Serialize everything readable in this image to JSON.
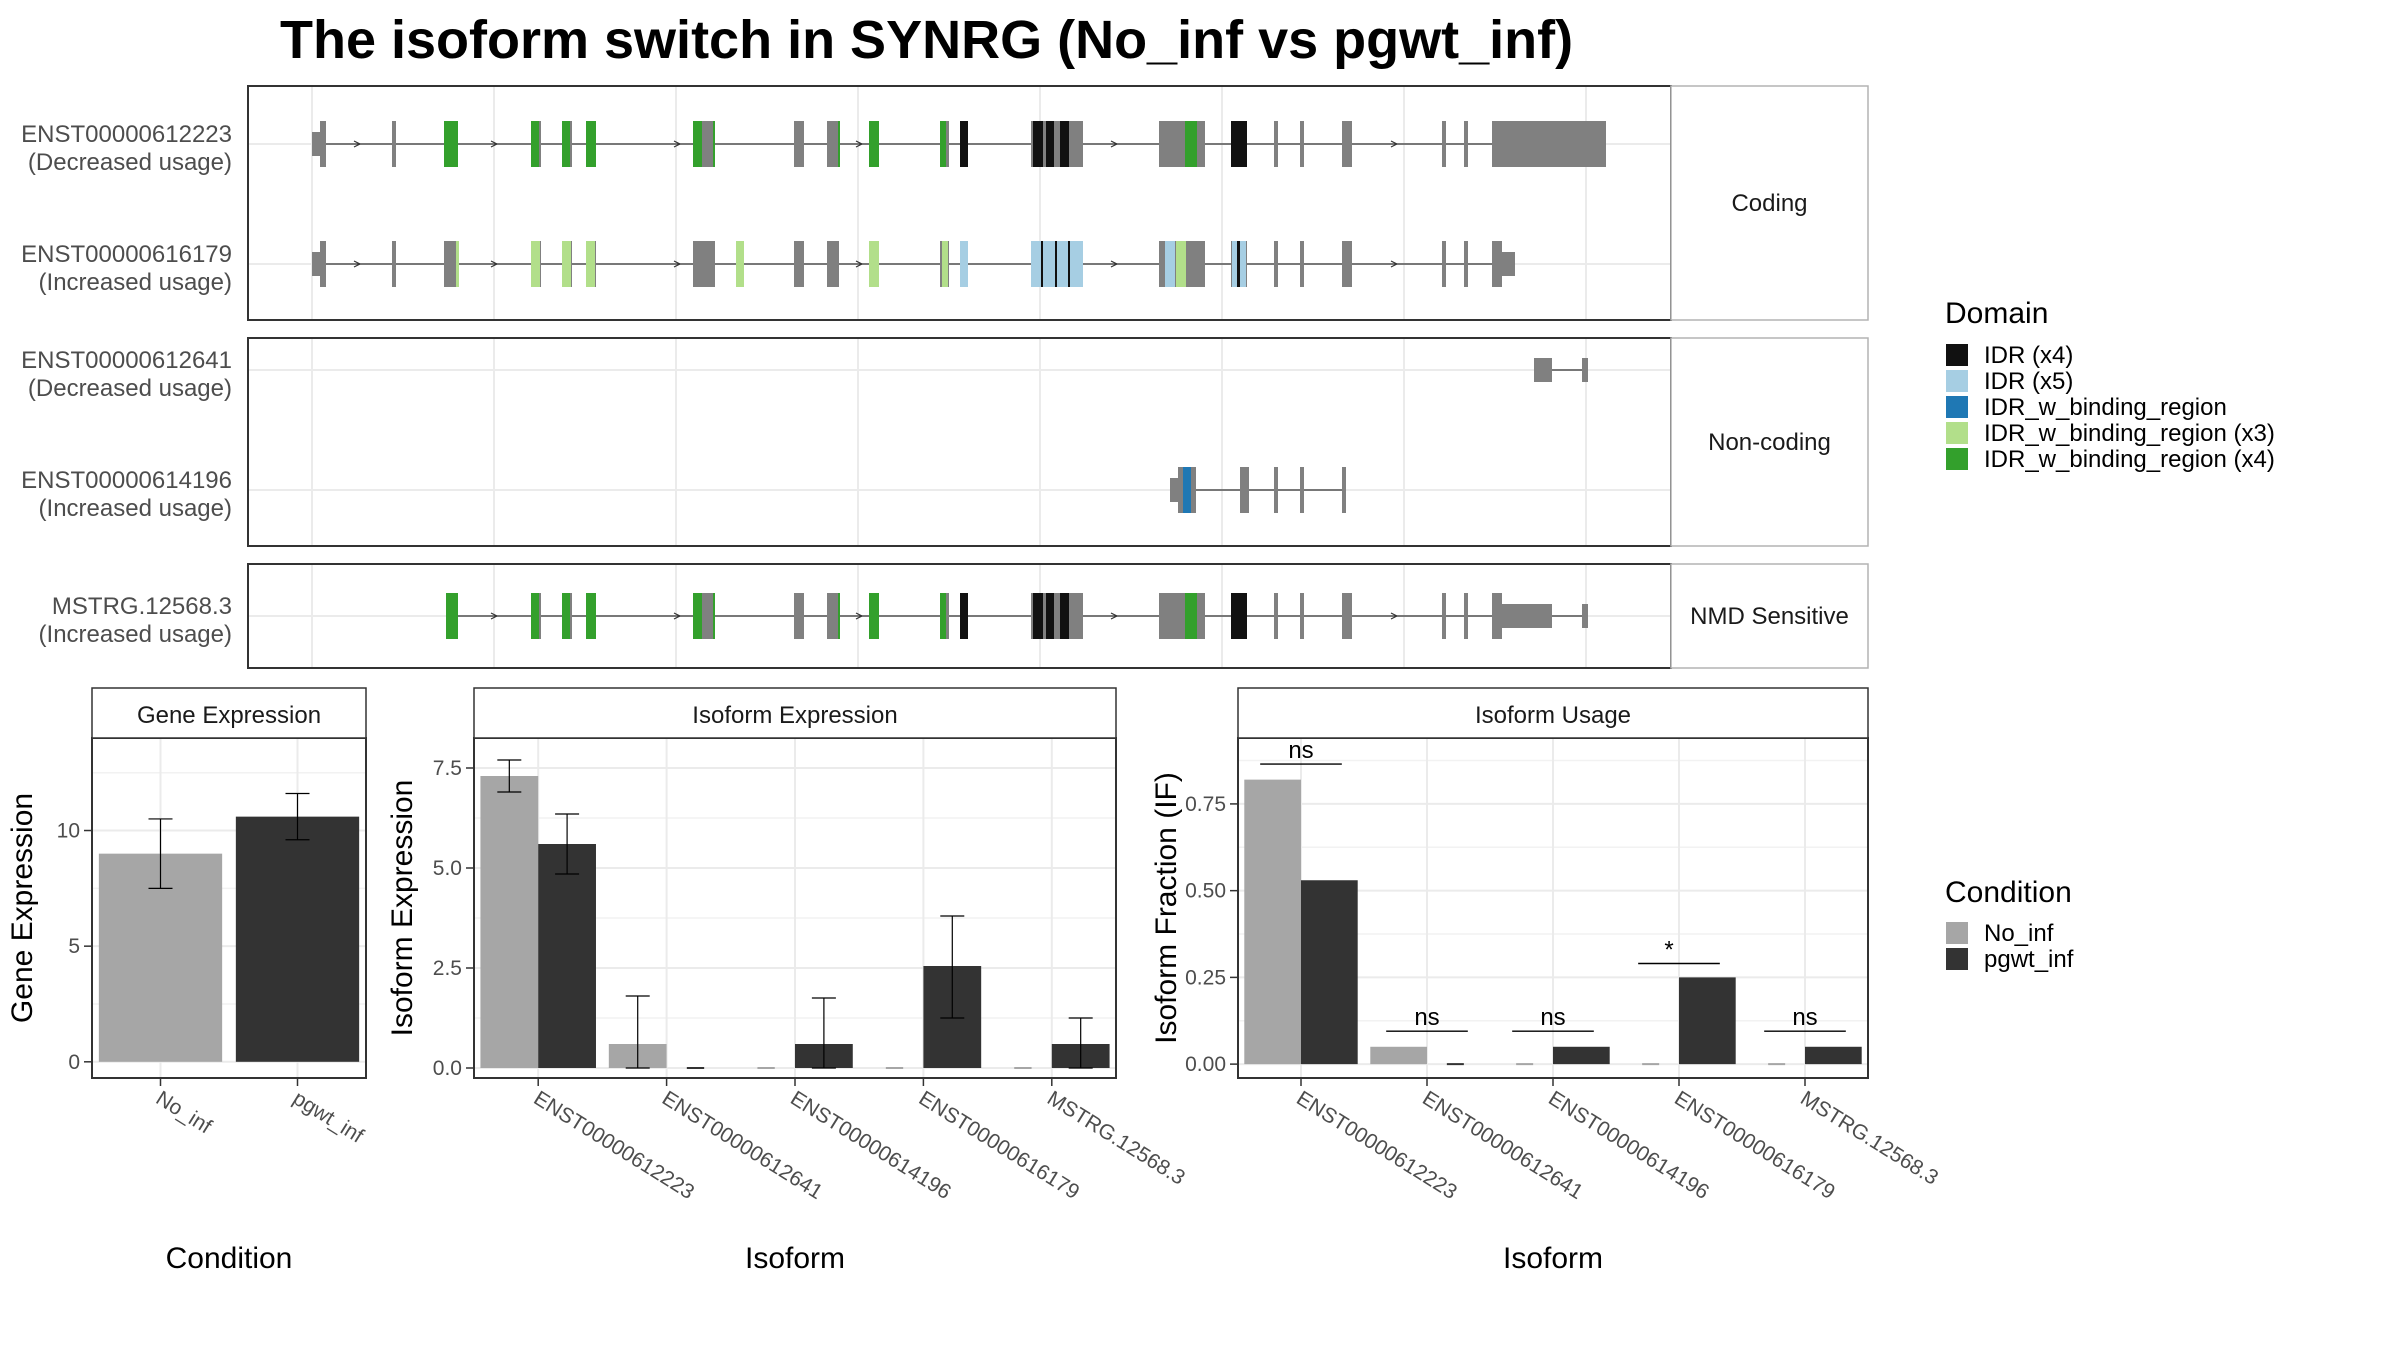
{
  "title": "The isoform switch in SYNRG (No_inf vs pgwt_inf)",
  "colors": {
    "intron": "#333333",
    "exon": "#808080",
    "panel_border": "#333333",
    "strip_bg": "#ffffff",
    "grid": "#ebebeb",
    "no_inf": "#a6a6a6",
    "pgwt_inf": "#333333"
  },
  "domain_legend": {
    "title": "Domain",
    "items": [
      {
        "label": "IDR (x4)",
        "color": "#111111"
      },
      {
        "label": "IDR (x5)",
        "color": "#a6cee3"
      },
      {
        "label": "IDR_w_binding_region",
        "color": "#1f78b4"
      },
      {
        "label": "IDR_w_binding_region (x3)",
        "color": "#b2df8a"
      },
      {
        "label": "IDR_w_binding_region (x4)",
        "color": "#33a02c"
      }
    ]
  },
  "condition_legend": {
    "title": "Condition",
    "items": [
      {
        "label": "No_inf",
        "color": "#a6a6a6"
      },
      {
        "label": "pgwt_inf",
        "color": "#333333"
      }
    ]
  },
  "structure": {
    "groups": [
      {
        "label": "Coding",
        "transcripts": [
          {
            "id": "ENST00000612223",
            "usage": "(Decreased usage)",
            "template": "full",
            "highlight": "dark",
            "tail": "long",
            "start": "5p"
          },
          {
            "id": "ENST00000616179",
            "usage": "(Increased usage)",
            "template": "full",
            "highlight": "light",
            "tail": "short",
            "start": "5p"
          }
        ]
      },
      {
        "label": "Non-coding",
        "transcripts": [
          {
            "id": "ENST00000612641",
            "usage": "(Decreased usage)",
            "template": "tail_only"
          },
          {
            "id": "ENST00000614196",
            "usage": "(Increased usage)",
            "template": "mid_only"
          }
        ]
      },
      {
        "label": "NMD Sensitive",
        "transcripts": [
          {
            "id": "MSTRG.12568.3",
            "usage": "(Increased usage)",
            "template": "full",
            "highlight": "dark",
            "tail": "nmd",
            "start": "late"
          }
        ]
      }
    ]
  },
  "chart_data": [
    {
      "type": "bar",
      "panel": "Gene Expression",
      "categories": [
        "No_inf",
        "pgwt_inf"
      ],
      "values": [
        9.0,
        10.6
      ],
      "error": [
        [
          7.5,
          10.5
        ],
        [
          9.6,
          11.6
        ]
      ],
      "xlabel": "Condition",
      "ylabel": "Gene Expression",
      "ylim": [
        -0.7,
        14.0
      ],
      "yticks": [
        0,
        5,
        10
      ],
      "ytick_labels": [
        "0",
        "5",
        "10"
      ]
    },
    {
      "type": "bar",
      "panel": "Isoform Expression",
      "categories": [
        "ENST00000612223",
        "ENST00000612641",
        "ENST00000614196",
        "ENST00000616179",
        "MSTRG.12568.3"
      ],
      "series": [
        {
          "name": "No_inf",
          "values": [
            7.3,
            0.6,
            0.0,
            0.0,
            0.0
          ],
          "error": [
            [
              6.9,
              7.7
            ],
            [
              0.0,
              1.8
            ],
            null,
            null,
            null
          ]
        },
        {
          "name": "pgwt_inf",
          "values": [
            5.6,
            0.0,
            0.6,
            2.55,
            0.6
          ],
          "error": [
            [
              4.85,
              6.35
            ],
            null,
            [
              0.0,
              1.75
            ],
            [
              1.25,
              3.8
            ],
            [
              0.0,
              1.25
            ]
          ]
        }
      ],
      "xlabel": "Isoform",
      "ylabel": "Isoform Expression",
      "ylim": [
        -0.25,
        8.25
      ],
      "yticks": [
        0,
        2.5,
        5,
        7.5
      ],
      "ytick_labels": [
        "0.0",
        "2.5",
        "5.0",
        "7.5"
      ]
    },
    {
      "type": "bar",
      "panel": "Isoform Usage",
      "categories": [
        "ENST00000612223",
        "ENST00000612641",
        "ENST00000614196",
        "ENST00000616179",
        "MSTRG.12568.3"
      ],
      "series": [
        {
          "name": "No_inf",
          "values": [
            0.82,
            0.05,
            0.0,
            0.0,
            0.0
          ]
        },
        {
          "name": "pgwt_inf",
          "values": [
            0.53,
            0.0,
            0.05,
            0.25,
            0.05
          ]
        }
      ],
      "significance": [
        {
          "category": "ENST00000612223",
          "label": "ns",
          "y": 0.865
        },
        {
          "category": "ENST00000612641",
          "label": "ns",
          "y": 0.095
        },
        {
          "category": "ENST00000614196",
          "label": "ns",
          "y": 0.095
        },
        {
          "category": "ENST00000616179",
          "label": "*",
          "y": 0.29
        },
        {
          "category": "MSTRG.12568.3",
          "label": "ns",
          "y": 0.095
        }
      ],
      "xlabel": "Isoform",
      "ylabel": "Isoform Fraction (IF)",
      "ylim": [
        -0.04,
        0.94
      ],
      "yticks": [
        0,
        0.25,
        0.5,
        0.75
      ],
      "ytick_labels": [
        "0.00",
        "0.25",
        "0.50",
        "0.75"
      ]
    }
  ]
}
